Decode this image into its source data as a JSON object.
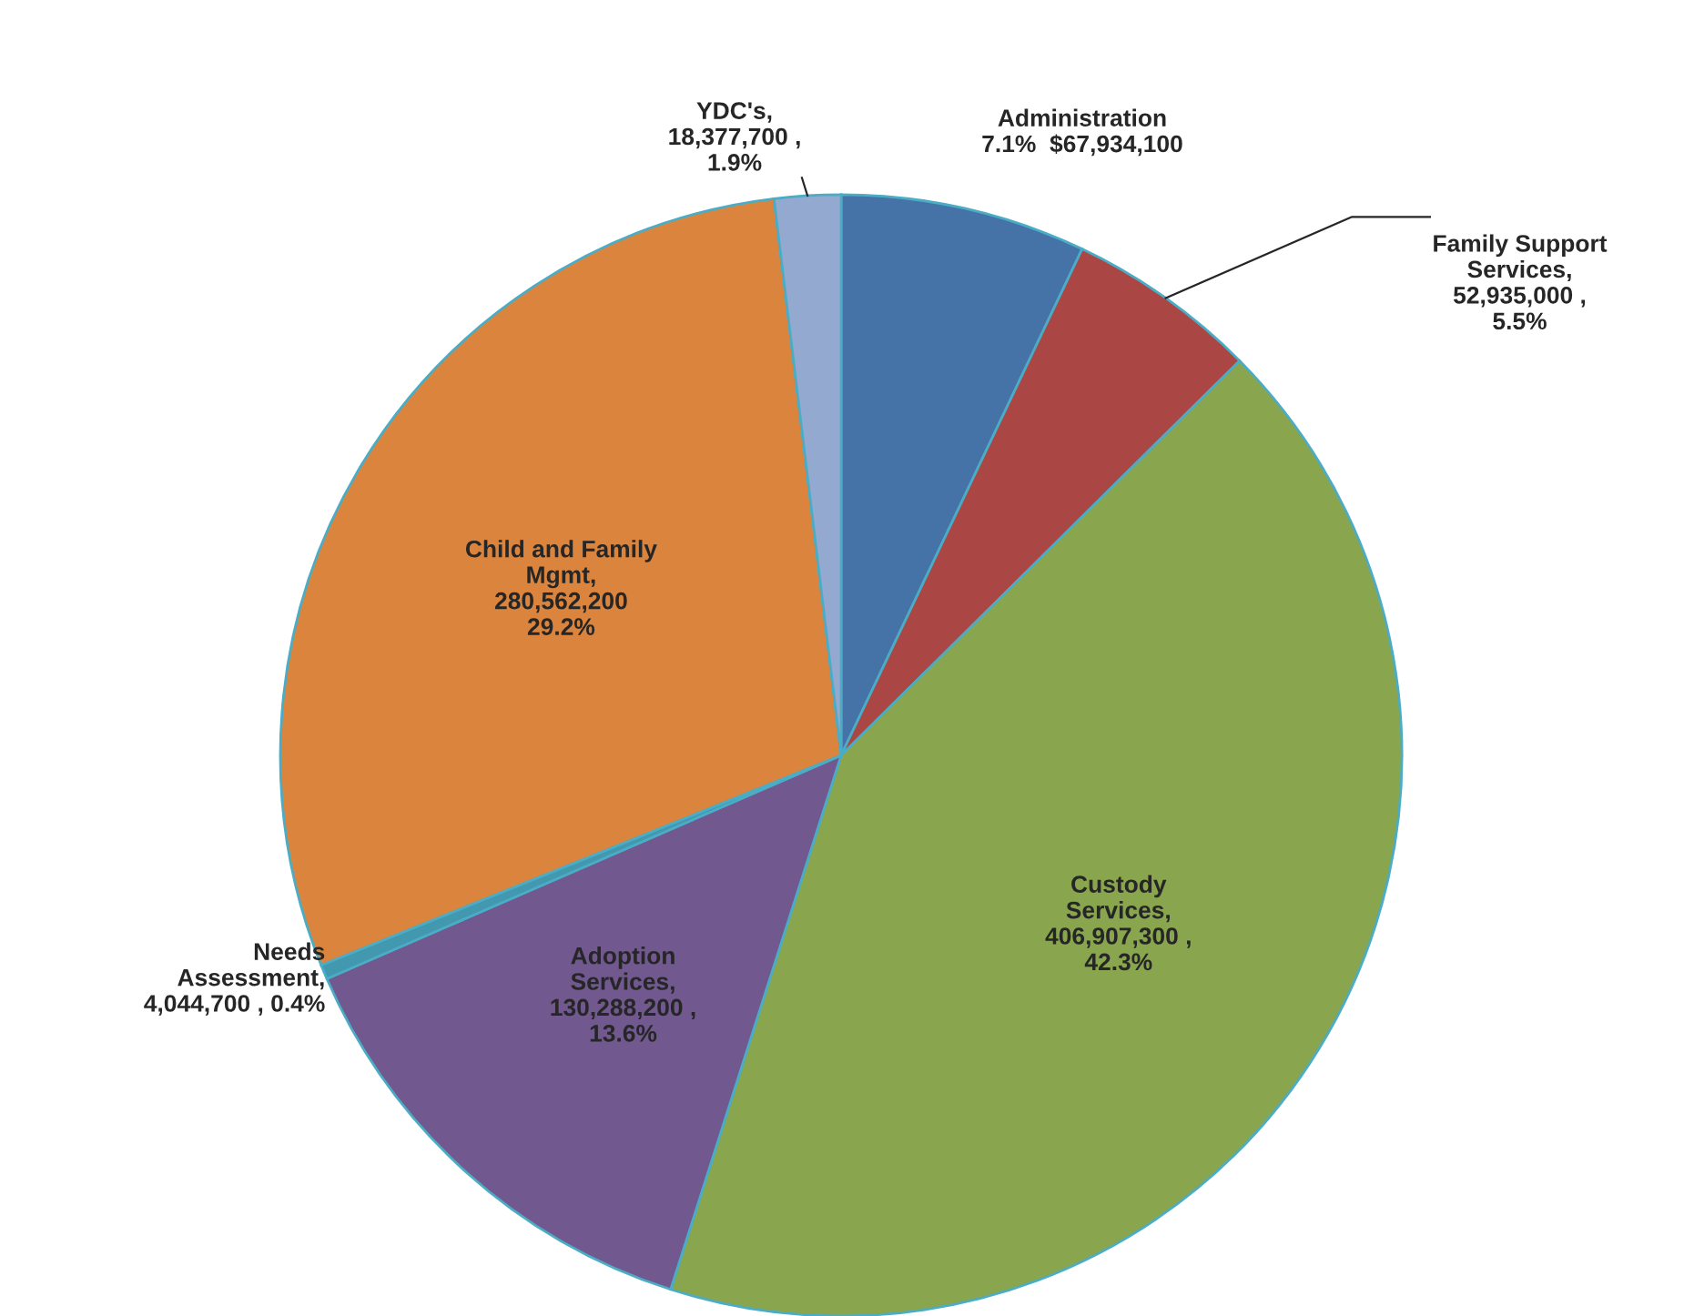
{
  "chart_data": {
    "type": "pie",
    "categories": [
      "Administration",
      "Family Support\nServices",
      "Custody\nServices",
      "Adoption\nServices",
      "Needs\nAssessment",
      "Child and Family\nMgmt",
      "YDC's"
    ],
    "values": [
      67934100,
      52935000,
      406907300,
      130288200,
      4044700,
      280562200,
      18377700
    ],
    "value_labels": [
      "7.1%  $67,934,100",
      ",\n52,935,000 ,\n5.5%",
      ",\n406,907,300 ,\n42.3%",
      ",\n130,288,200 ,\n13.6%",
      ",\n4,044,700 , 0.4%",
      ",\n280,562,200\n29.2%",
      ",\n18,377,700 ,\n1.9%"
    ],
    "colors": [
      "#4572a7",
      "#aa4643",
      "#89a54e",
      "#71588f",
      "#4198af",
      "#db843d",
      "#93a9cf"
    ],
    "legend": false
  }
}
